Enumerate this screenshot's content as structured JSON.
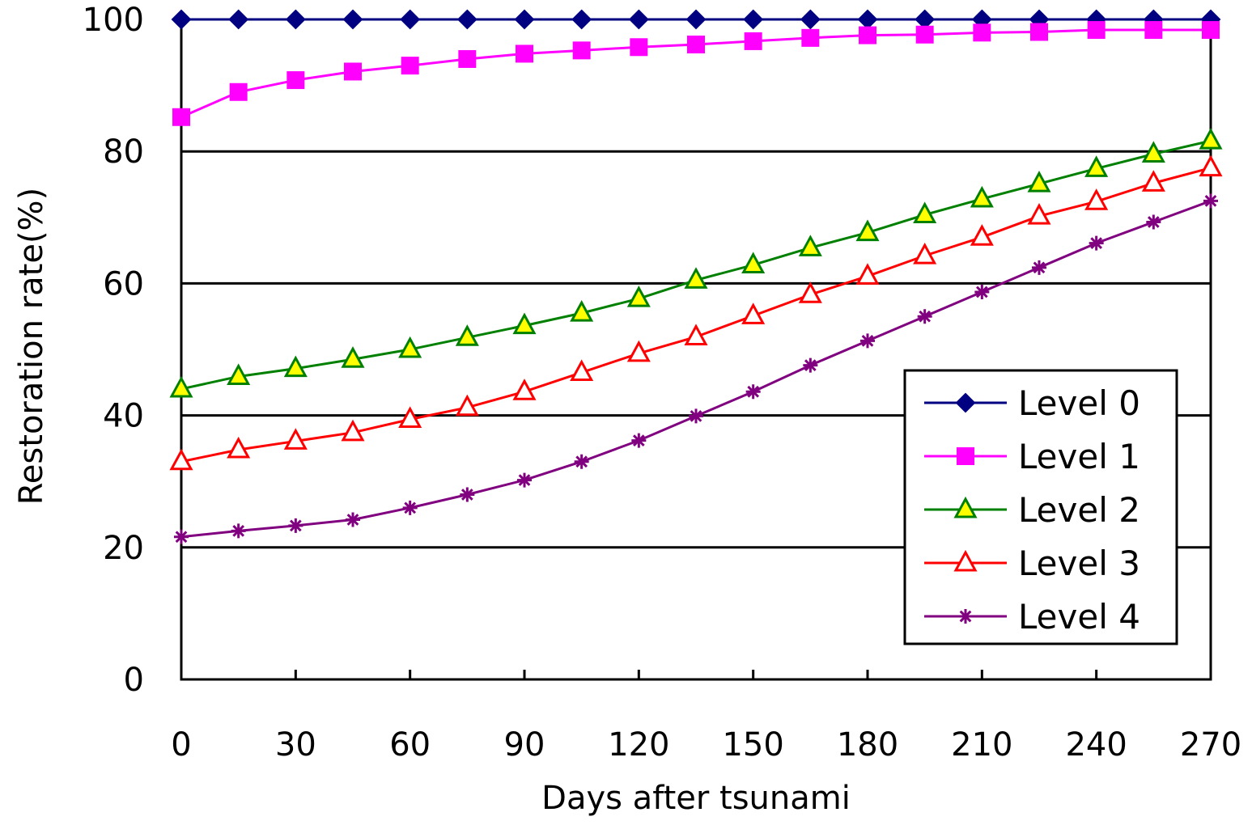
{
  "chart_data": {
    "type": "line",
    "title": "",
    "xlabel": "Days after tsunami",
    "ylabel": "Restoration rate(%)",
    "xlim": [
      0,
      270
    ],
    "ylim": [
      0,
      100
    ],
    "x_ticks": [
      0,
      30,
      60,
      90,
      120,
      150,
      180,
      210,
      240,
      270
    ],
    "y_ticks": [
      0,
      20,
      40,
      60,
      80,
      100
    ],
    "gridlines": "horizontal",
    "legend_position": "bottom-right",
    "x": [
      0,
      15,
      30,
      45,
      60,
      75,
      90,
      105,
      120,
      135,
      150,
      165,
      180,
      195,
      210,
      225,
      240,
      255,
      270
    ],
    "series": [
      {
        "name": "Level 0",
        "color": "#000080",
        "fill": "#000080",
        "marker": "diamond",
        "values": [
          100,
          100,
          100,
          100,
          100,
          100,
          100,
          100,
          100,
          100,
          100,
          100,
          100,
          100,
          100,
          100,
          100,
          100,
          100
        ]
      },
      {
        "name": "Level 1",
        "color": "#ff00ff",
        "fill": "#ff00ff",
        "marker": "square",
        "values": [
          85.2,
          89.0,
          90.8,
          92.1,
          93.0,
          94.0,
          94.8,
          95.3,
          95.8,
          96.2,
          96.7,
          97.2,
          97.6,
          97.7,
          98.0,
          98.1,
          98.4,
          98.4,
          98.4
        ]
      },
      {
        "name": "Level 2",
        "color": "#008000",
        "fill": "#ffff00",
        "marker": "triangle",
        "values": [
          44.0,
          45.9,
          47.1,
          48.5,
          50.0,
          51.8,
          53.6,
          55.5,
          57.7,
          60.5,
          62.8,
          65.4,
          67.7,
          70.4,
          72.8,
          75.1,
          77.4,
          79.6,
          81.6
        ]
      },
      {
        "name": "Level 3",
        "color": "#ff0000",
        "fill": "#ffffff",
        "marker": "triangle",
        "values": [
          33.0,
          34.8,
          36.1,
          37.4,
          39.4,
          41.2,
          43.6,
          46.5,
          49.4,
          51.9,
          55.1,
          58.3,
          61.1,
          64.2,
          67.0,
          70.2,
          72.4,
          75.2,
          77.5
        ]
      },
      {
        "name": "Level 4",
        "color": "#800080",
        "fill": "#800080",
        "marker": "asterisk",
        "values": [
          21.6,
          22.5,
          23.3,
          24.2,
          26.0,
          28.0,
          30.2,
          33.0,
          36.2,
          39.9,
          43.6,
          47.6,
          51.3,
          55.0,
          58.7,
          62.4,
          66.1,
          69.3,
          72.5
        ]
      }
    ]
  }
}
